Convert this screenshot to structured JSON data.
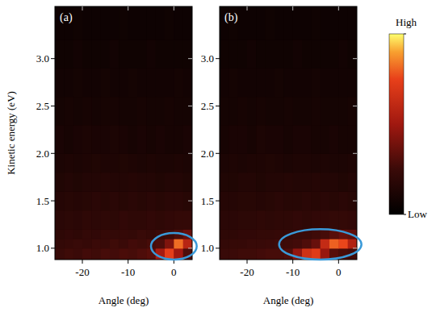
{
  "chart_data": [
    {
      "type": "heatmap",
      "title": "(a)",
      "xlabel": "Angle (deg)",
      "ylabel": "Kinetic energy (eV)",
      "xlim": [
        -26,
        4
      ],
      "ylim": [
        0.88,
        3.55
      ],
      "xticks": [
        -20,
        -10,
        0
      ],
      "yticks": [
        {
          "value": 1,
          "label": "1.0"
        },
        1.5,
        {
          "value": 2,
          "label": "2.0"
        },
        2.5,
        {
          "value": 3,
          "label": "3.0"
        }
      ],
      "x_edges": [
        -26,
        -24,
        -22,
        -20,
        -18,
        -16,
        -14,
        -12,
        -10,
        -8,
        -6,
        -4,
        -2,
        0,
        2,
        4
      ],
      "y_edges": [
        0.88,
        1.0,
        1.1,
        1.2,
        1.4,
        1.6,
        1.8,
        2.0,
        2.3,
        2.6,
        2.9,
        3.2,
        3.55
      ],
      "cells": [
        [
          0.24,
          0.26,
          0.25,
          0.27,
          0.26,
          0.28,
          0.27,
          0.29,
          0.28,
          0.3,
          0.32,
          0.52,
          0.74,
          0.5,
          0.3
        ],
        [
          0.22,
          0.23,
          0.24,
          0.23,
          0.25,
          0.24,
          0.26,
          0.25,
          0.27,
          0.26,
          0.28,
          0.3,
          0.42,
          0.82,
          0.58
        ],
        [
          0.2,
          0.21,
          0.2,
          0.22,
          0.21,
          0.23,
          0.22,
          0.23,
          0.22,
          0.24,
          0.23,
          0.25,
          0.26,
          0.3,
          0.36
        ],
        [
          0.18,
          0.19,
          0.18,
          0.2,
          0.19,
          0.2,
          0.19,
          0.21,
          0.2,
          0.2,
          0.21,
          0.2,
          0.21,
          0.22,
          0.22
        ],
        [
          0.16,
          0.17,
          0.16,
          0.17,
          0.18,
          0.17,
          0.18,
          0.17,
          0.18,
          0.17,
          0.18,
          0.17,
          0.18,
          0.18,
          0.17
        ],
        [
          0.14,
          0.15,
          0.14,
          0.15,
          0.15,
          0.16,
          0.15,
          0.15,
          0.16,
          0.15,
          0.15,
          0.14,
          0.15,
          0.15,
          0.14
        ],
        [
          0.12,
          0.13,
          0.12,
          0.13,
          0.14,
          0.13,
          0.13,
          0.14,
          0.13,
          0.12,
          0.13,
          0.12,
          0.12,
          0.13,
          0.12
        ],
        [
          0.11,
          0.1,
          0.11,
          0.12,
          0.11,
          0.11,
          0.12,
          0.11,
          0.1,
          0.11,
          0.1,
          0.11,
          0.1,
          0.1,
          0.11
        ],
        [
          0.09,
          0.1,
          0.09,
          0.1,
          0.09,
          0.1,
          0.1,
          0.09,
          0.09,
          0.1,
          0.09,
          0.09,
          0.1,
          0.09,
          0.09
        ],
        [
          0.08,
          0.08,
          0.09,
          0.08,
          0.08,
          0.09,
          0.08,
          0.08,
          0.09,
          0.08,
          0.08,
          0.08,
          0.08,
          0.09,
          0.08
        ],
        [
          0.07,
          0.07,
          0.08,
          0.07,
          0.07,
          0.07,
          0.08,
          0.07,
          0.07,
          0.07,
          0.08,
          0.07,
          0.07,
          0.07,
          0.07
        ],
        [
          0.06,
          0.06,
          0.07,
          0.06,
          0.06,
          0.06,
          0.06,
          0.07,
          0.06,
          0.06,
          0.06,
          0.06,
          0.07,
          0.06,
          0.06
        ]
      ],
      "highlight": {
        "x": [
          -5,
          5
        ],
        "y": [
          0.88,
          1.16
        ]
      }
    },
    {
      "type": "heatmap",
      "title": "(b)",
      "xlabel": "Angle (deg)",
      "xlim": [
        -26,
        4
      ],
      "ylim": [
        0.88,
        3.55
      ],
      "xticks": [
        -20,
        -10,
        0
      ],
      "yticks": [
        {
          "value": 1,
          "label": "1.0"
        },
        1.5,
        {
          "value": 2,
          "label": "2.0"
        },
        2.5,
        {
          "value": 3,
          "label": "3.0"
        }
      ],
      "x_edges": [
        -26,
        -24,
        -22,
        -20,
        -18,
        -16,
        -14,
        -12,
        -10,
        -8,
        -6,
        -4,
        -2,
        0,
        2,
        4
      ],
      "y_edges": [
        0.88,
        1.0,
        1.1,
        1.2,
        1.4,
        1.6,
        1.8,
        2.0,
        2.3,
        2.6,
        2.9,
        3.2,
        3.55
      ],
      "cells": [
        [
          0.24,
          0.25,
          0.26,
          0.26,
          0.27,
          0.28,
          0.28,
          0.3,
          0.46,
          0.66,
          0.72,
          0.48,
          0.32,
          0.29,
          0.27
        ],
        [
          0.22,
          0.23,
          0.23,
          0.24,
          0.24,
          0.25,
          0.26,
          0.26,
          0.27,
          0.3,
          0.36,
          0.62,
          0.8,
          0.76,
          0.56
        ],
        [
          0.2,
          0.2,
          0.21,
          0.21,
          0.22,
          0.22,
          0.23,
          0.23,
          0.24,
          0.25,
          0.26,
          0.28,
          0.32,
          0.36,
          0.34
        ],
        [
          0.18,
          0.18,
          0.19,
          0.19,
          0.2,
          0.19,
          0.2,
          0.2,
          0.21,
          0.2,
          0.21,
          0.21,
          0.22,
          0.22,
          0.21
        ],
        [
          0.16,
          0.16,
          0.17,
          0.17,
          0.16,
          0.17,
          0.18,
          0.17,
          0.17,
          0.18,
          0.17,
          0.18,
          0.17,
          0.18,
          0.17
        ],
        [
          0.14,
          0.14,
          0.15,
          0.15,
          0.14,
          0.15,
          0.15,
          0.16,
          0.15,
          0.15,
          0.16,
          0.15,
          0.15,
          0.14,
          0.15
        ],
        [
          0.12,
          0.13,
          0.12,
          0.13,
          0.13,
          0.14,
          0.13,
          0.12,
          0.13,
          0.13,
          0.12,
          0.13,
          0.12,
          0.12,
          0.13
        ],
        [
          0.1,
          0.11,
          0.11,
          0.1,
          0.12,
          0.11,
          0.11,
          0.1,
          0.11,
          0.11,
          0.1,
          0.1,
          0.11,
          0.1,
          0.1
        ],
        [
          0.09,
          0.09,
          0.1,
          0.09,
          0.1,
          0.09,
          0.09,
          0.1,
          0.09,
          0.09,
          0.1,
          0.09,
          0.09,
          0.09,
          0.1
        ],
        [
          0.08,
          0.09,
          0.08,
          0.08,
          0.08,
          0.08,
          0.09,
          0.08,
          0.08,
          0.08,
          0.09,
          0.08,
          0.08,
          0.08,
          0.08
        ],
        [
          0.07,
          0.07,
          0.07,
          0.08,
          0.07,
          0.07,
          0.07,
          0.07,
          0.08,
          0.07,
          0.07,
          0.07,
          0.07,
          0.08,
          0.07
        ],
        [
          0.06,
          0.07,
          0.06,
          0.06,
          0.06,
          0.07,
          0.06,
          0.06,
          0.06,
          0.06,
          0.07,
          0.06,
          0.06,
          0.06,
          0.06
        ]
      ],
      "highlight": {
        "x": [
          -13,
          5
        ],
        "y": [
          0.88,
          1.2
        ]
      },
      "colorbar": {
        "range": [
          0,
          1
        ],
        "ticks": [
          {
            "value": 1,
            "label": "High"
          },
          {
            "value": 0,
            "label": "Low"
          }
        ]
      }
    }
  ]
}
